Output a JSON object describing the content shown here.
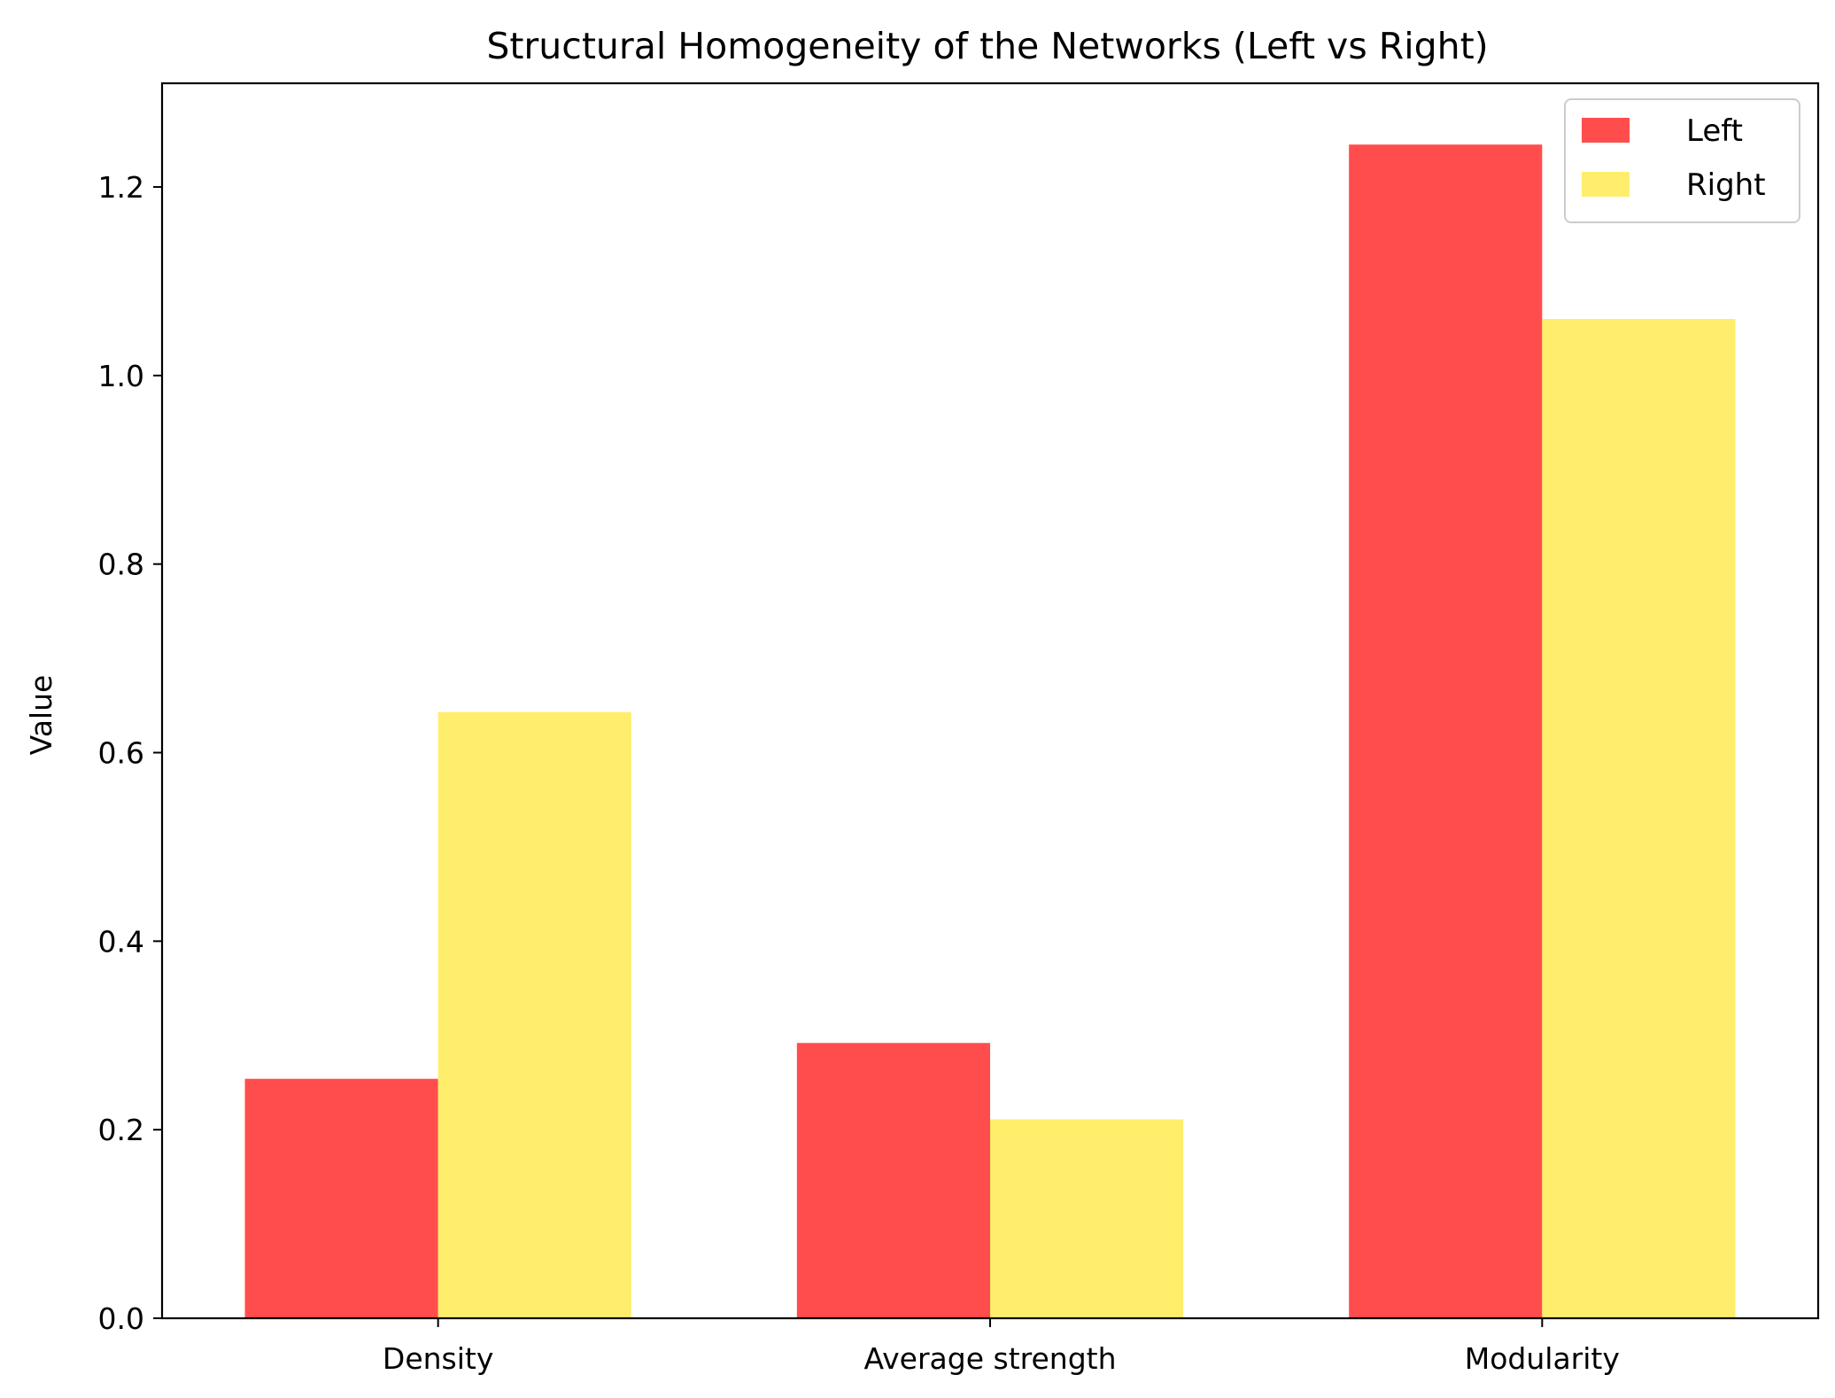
{
  "chart_data": {
    "type": "bar",
    "title": "Structural Homogeneity of the Networks (Left vs Right)",
    "xlabel": "",
    "ylabel": "Value",
    "categories": [
      "Density",
      "Average strength",
      "Modularity"
    ],
    "series": [
      {
        "name": "Left",
        "values": [
          0.254,
          0.292,
          1.245
        ],
        "color": "#ff4d4d"
      },
      {
        "name": "Right",
        "values": [
          0.643,
          0.211,
          1.06
        ],
        "color": "#ffee6b"
      }
    ],
    "ylim": [
      0,
      1.31
    ],
    "yticks": [
      "0.0",
      "0.2",
      "0.4",
      "0.6",
      "0.8",
      "1.0",
      "1.2"
    ],
    "grid": false,
    "legend_position": "top-right"
  }
}
